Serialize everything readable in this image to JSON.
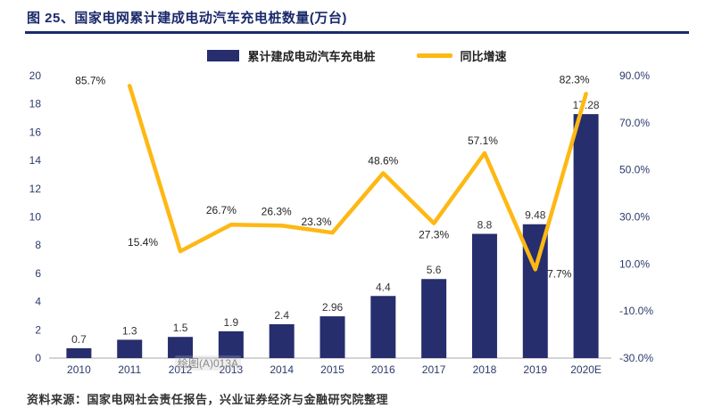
{
  "header": {
    "title": "图 25、国家电网累计建成电动汽车充电桩数量(万台)"
  },
  "legend": {
    "bars_label": "累计建成电动汽车充电桩",
    "line_label": "同比增速"
  },
  "chart_data": {
    "type": "bar",
    "subtype": "bar+line combo, dual axis",
    "title": "国家电网累计建成电动汽车充电桩数量(万台)",
    "categories": [
      "2010",
      "2011",
      "2012",
      "2013",
      "2014",
      "2015",
      "2016",
      "2017",
      "2018",
      "2019",
      "2020E"
    ],
    "series": [
      {
        "name": "累计建成电动汽车充电桩",
        "type": "bar",
        "axis": "left",
        "values": [
          0.7,
          1.3,
          1.5,
          1.9,
          2.4,
          2.96,
          4.4,
          5.6,
          8.8,
          9.48,
          17.28
        ],
        "labels": [
          "0.7",
          "1.3",
          "1.5",
          "1.9",
          "2.4",
          "2.96",
          "4.4",
          "5.6",
          "8.8",
          "9.48",
          "17.28"
        ]
      },
      {
        "name": "同比增速",
        "type": "line",
        "axis": "right",
        "values": [
          null,
          85.7,
          15.4,
          26.7,
          26.3,
          23.3,
          48.6,
          27.3,
          57.1,
          7.7,
          82.3
        ],
        "labels": [
          "",
          "85.7%",
          "15.4%",
          "26.7%",
          "26.3%",
          "23.3%",
          "48.6%",
          "27.3%",
          "57.1%",
          "7.7%",
          "82.3%"
        ]
      }
    ],
    "left_axis": {
      "min": 0,
      "max": 20,
      "ticks": [
        20,
        18,
        16,
        14,
        12,
        10,
        8,
        6,
        4,
        2,
        0
      ]
    },
    "right_axis": {
      "min": -30,
      "max": 90,
      "ticks": [
        "90.0%",
        "70.0%",
        "50.0%",
        "30.0%",
        "10.0%",
        "-10.0%",
        "-30.0%"
      ]
    },
    "grid": false,
    "legend_position": "top-center",
    "colors": {
      "bar": "#262e6e",
      "line": "#FDB813",
      "accent_navy": "#1b2a6b"
    }
  },
  "watermark": "绘图(A)013A",
  "footer": {
    "source": "资料来源：国家电网社会责任报告，兴业证券经济与金融研究院整理"
  }
}
